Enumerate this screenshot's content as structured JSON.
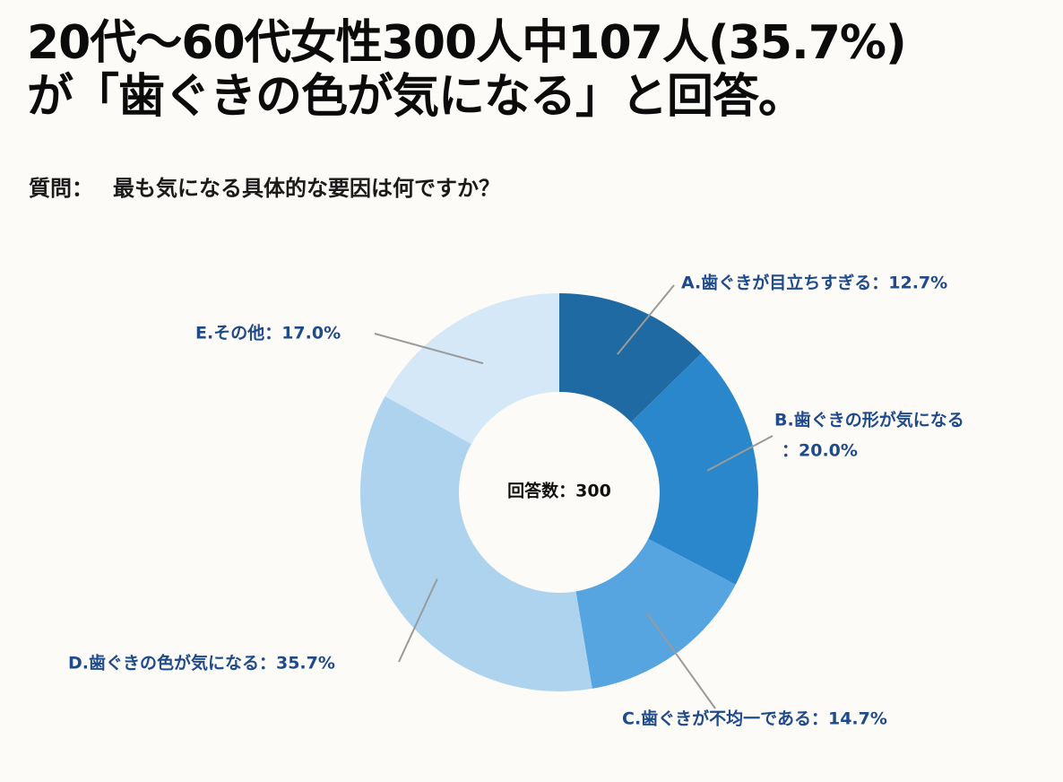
{
  "title": {
    "line1": "20代〜60代女性300人中107人(35.7%)",
    "line2": "が「歯ぐきの色が気になる」と回答。"
  },
  "question": {
    "label": "質問：",
    "text": "最も気になる具体的な要因は何ですか？"
  },
  "chart_data": {
    "type": "pie",
    "donut": true,
    "center_label": "回答数：300",
    "categories": [
      "A.歯ぐきが目立ちすぎる",
      "B.歯ぐきの形が気になる",
      "C.歯ぐきが不均一である",
      "D.歯ぐきの色が気になる",
      "E.その他"
    ],
    "values": [
      12.7,
      20.0,
      14.7,
      35.7,
      17.0
    ],
    "unit": "%",
    "labels": [
      "A.歯ぐきが目立ちすぎる：12.7%",
      "B.歯ぐきの形が気になる",
      "：20.0%",
      "C.歯ぐきが不均一である：14.7%",
      "D.歯ぐきの色が気になる：35.7%",
      "E.その他：17.0%"
    ],
    "colors": [
      "#1f6aa3",
      "#2a87cb",
      "#56a4e0",
      "#aed3ef",
      "#d4e8f8"
    ],
    "label_color": "#1f4a8c",
    "start": "12 o'clock",
    "direction": "clockwise"
  }
}
